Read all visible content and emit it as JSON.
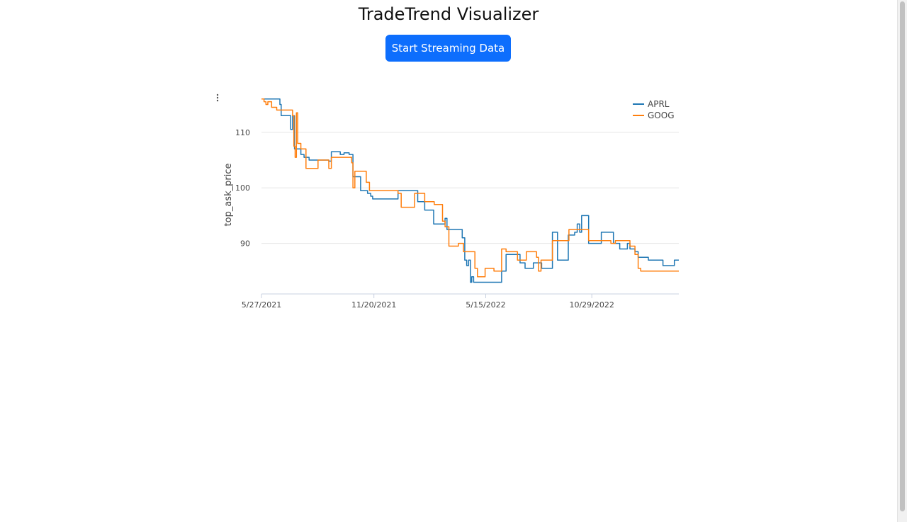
{
  "app": {
    "title": "TradeTrend Visualizer",
    "stream_button_label": "Start Streaming Data",
    "menu_icon": "vertical-dots-icon"
  },
  "colors": {
    "button": "#0d6efd",
    "aprl": "#1f77b4",
    "goog": "#ff7f0e",
    "grid": "#e5e5e5"
  },
  "chart_data": {
    "type": "line",
    "title": "",
    "xlabel": "",
    "ylabel": "top_ask_price",
    "x_tick_labels": [
      "5/27/2021",
      "11/20/2021",
      "5/15/2022",
      "10/29/2022"
    ],
    "y_tick_labels": [
      "110",
      "100",
      "90"
    ],
    "x_range": [
      "2021-05-27",
      "2023-03-15"
    ],
    "ylim": [
      80.9,
      116.6
    ],
    "grid": true,
    "legend_position": "top-right",
    "series": [
      {
        "name": "APRL",
        "color": "#1f77b4",
        "points": [
          [
            "2021-05-27",
            116.0
          ],
          [
            "2021-06-20",
            116.0
          ],
          [
            "2021-06-25",
            115.0
          ],
          [
            "2021-06-27",
            113.0
          ],
          [
            "2021-07-10",
            113.0
          ],
          [
            "2021-07-12",
            110.5
          ],
          [
            "2021-07-15",
            113.0
          ],
          [
            "2021-07-18",
            107.0
          ],
          [
            "2021-07-22",
            107.0
          ],
          [
            "2021-07-28",
            106.0
          ],
          [
            "2021-08-02",
            105.5
          ],
          [
            "2021-08-10",
            105.0
          ],
          [
            "2021-09-05",
            105.0
          ],
          [
            "2021-09-10",
            104.8
          ],
          [
            "2021-09-14",
            106.5
          ],
          [
            "2021-09-22",
            106.5
          ],
          [
            "2021-09-28",
            106.0
          ],
          [
            "2021-10-04",
            106.3
          ],
          [
            "2021-10-12",
            106.0
          ],
          [
            "2021-10-18",
            102.0
          ],
          [
            "2021-10-25",
            102.0
          ],
          [
            "2021-10-30",
            99.5
          ],
          [
            "2021-11-10",
            99.0
          ],
          [
            "2021-11-15",
            98.5
          ],
          [
            "2021-11-18",
            98.0
          ],
          [
            "2021-12-25",
            98.0
          ],
          [
            "2021-12-28",
            99.5
          ],
          [
            "2022-01-10",
            99.5
          ],
          [
            "2022-01-25",
            99.5
          ],
          [
            "2022-01-28",
            97.5
          ],
          [
            "2022-02-05",
            97.5
          ],
          [
            "2022-02-08",
            96.0
          ],
          [
            "2022-02-18",
            96.0
          ],
          [
            "2022-02-22",
            93.5
          ],
          [
            "2022-03-10",
            93.5
          ],
          [
            "2022-03-12",
            94.5
          ],
          [
            "2022-03-15",
            92.5
          ],
          [
            "2022-04-05",
            92.5
          ],
          [
            "2022-04-08",
            91.0
          ],
          [
            "2022-04-12",
            87.0
          ],
          [
            "2022-04-15",
            86.0
          ],
          [
            "2022-04-18",
            87.0
          ],
          [
            "2022-04-21",
            83.0
          ],
          [
            "2022-04-23",
            84.0
          ],
          [
            "2022-04-26",
            83.0
          ],
          [
            "2022-05-20",
            83.0
          ],
          [
            "2022-05-25",
            83.0
          ],
          [
            "2022-06-05",
            83.0
          ],
          [
            "2022-06-09",
            85.0
          ],
          [
            "2022-06-16",
            88.0
          ],
          [
            "2022-07-03",
            88.0
          ],
          [
            "2022-07-08",
            86.5
          ],
          [
            "2022-07-13",
            86.5
          ],
          [
            "2022-07-16",
            85.5
          ],
          [
            "2022-07-26",
            85.5
          ],
          [
            "2022-07-29",
            86.5
          ],
          [
            "2022-08-06",
            86.5
          ],
          [
            "2022-08-11",
            85.5
          ],
          [
            "2022-08-25",
            85.5
          ],
          [
            "2022-08-28",
            92.0
          ],
          [
            "2022-09-03",
            92.0
          ],
          [
            "2022-09-05",
            87.0
          ],
          [
            "2022-09-20",
            87.0
          ],
          [
            "2022-09-22",
            91.5
          ],
          [
            "2022-10-02",
            92.0
          ],
          [
            "2022-10-06",
            93.5
          ],
          [
            "2022-10-10",
            92.0
          ],
          [
            "2022-10-13",
            95.0
          ],
          [
            "2022-10-20",
            95.0
          ],
          [
            "2022-10-24",
            90.0
          ],
          [
            "2022-11-10",
            90.0
          ],
          [
            "2022-11-13",
            92.0
          ],
          [
            "2022-11-30",
            92.0
          ],
          [
            "2022-12-02",
            90.0
          ],
          [
            "2022-12-08",
            90.0
          ],
          [
            "2022-12-12",
            89.0
          ],
          [
            "2022-12-20",
            89.0
          ],
          [
            "2022-12-24",
            90.0
          ],
          [
            "2022-12-28",
            89.0
          ],
          [
            "2023-01-05",
            88.5
          ],
          [
            "2023-01-10",
            87.5
          ],
          [
            "2023-01-20",
            87.5
          ],
          [
            "2023-01-26",
            87.0
          ],
          [
            "2023-02-15",
            87.0
          ],
          [
            "2023-02-18",
            86.0
          ],
          [
            "2023-03-05",
            86.0
          ],
          [
            "2023-03-08",
            87.0
          ],
          [
            "2023-03-15",
            87.0
          ]
        ]
      },
      {
        "name": "GOOG",
        "color": "#ff7f0e",
        "points": [
          [
            "2021-05-27",
            116.0
          ],
          [
            "2021-05-31",
            115.5
          ],
          [
            "2021-06-03",
            115.0
          ],
          [
            "2021-06-06",
            115.5
          ],
          [
            "2021-06-12",
            114.5
          ],
          [
            "2021-06-20",
            114.0
          ],
          [
            "2021-07-12",
            114.0
          ],
          [
            "2021-07-15",
            113.0
          ],
          [
            "2021-07-17",
            107.5
          ],
          [
            "2021-07-19",
            105.5
          ],
          [
            "2021-07-21",
            113.5
          ],
          [
            "2021-07-23",
            108.0
          ],
          [
            "2021-07-28",
            107.0
          ],
          [
            "2021-08-05",
            103.5
          ],
          [
            "2021-08-20",
            103.5
          ],
          [
            "2021-08-24",
            105.0
          ],
          [
            "2021-09-05",
            105.0
          ],
          [
            "2021-09-10",
            103.5
          ],
          [
            "2021-09-14",
            105.5
          ],
          [
            "2021-10-12",
            105.5
          ],
          [
            "2021-10-16",
            104.5
          ],
          [
            "2021-10-18",
            100.0
          ],
          [
            "2021-10-21",
            103.0
          ],
          [
            "2021-11-05",
            103.0
          ],
          [
            "2021-11-08",
            101.0
          ],
          [
            "2021-11-13",
            99.5
          ],
          [
            "2021-12-25",
            99.5
          ],
          [
            "2021-12-28",
            99.0
          ],
          [
            "2022-01-02",
            96.5
          ],
          [
            "2022-01-20",
            96.5
          ],
          [
            "2022-01-23",
            99.0
          ],
          [
            "2022-02-05",
            99.0
          ],
          [
            "2022-02-08",
            97.5
          ],
          [
            "2022-02-20",
            97.5
          ],
          [
            "2022-02-23",
            97.0
          ],
          [
            "2022-03-05",
            97.0
          ],
          [
            "2022-03-08",
            94.0
          ],
          [
            "2022-03-12",
            93.0
          ],
          [
            "2022-03-18",
            89.5
          ],
          [
            "2022-03-30",
            89.5
          ],
          [
            "2022-04-02",
            90.0
          ],
          [
            "2022-04-10",
            88.5
          ],
          [
            "2022-04-25",
            88.5
          ],
          [
            "2022-04-28",
            85.5
          ],
          [
            "2022-05-02",
            84.0
          ],
          [
            "2022-05-10",
            84.0
          ],
          [
            "2022-05-14",
            85.5
          ],
          [
            "2022-05-25",
            85.5
          ],
          [
            "2022-05-28",
            85.0
          ],
          [
            "2022-06-05",
            85.0
          ],
          [
            "2022-06-09",
            89.0
          ],
          [
            "2022-06-16",
            88.5
          ],
          [
            "2022-07-01",
            88.5
          ],
          [
            "2022-07-04",
            87.0
          ],
          [
            "2022-07-14",
            87.0
          ],
          [
            "2022-07-18",
            88.5
          ],
          [
            "2022-07-30",
            88.5
          ],
          [
            "2022-08-03",
            87.5
          ],
          [
            "2022-08-06",
            85.0
          ],
          [
            "2022-08-10",
            87.0
          ],
          [
            "2022-08-25",
            87.0
          ],
          [
            "2022-08-28",
            90.5
          ],
          [
            "2022-09-20",
            90.5
          ],
          [
            "2022-09-23",
            92.5
          ],
          [
            "2022-10-20",
            92.5
          ],
          [
            "2022-10-24",
            90.5
          ],
          [
            "2022-11-25",
            90.5
          ],
          [
            "2022-11-28",
            90.0
          ],
          [
            "2022-12-05",
            90.5
          ],
          [
            "2022-12-25",
            90.5
          ],
          [
            "2022-12-28",
            89.5
          ],
          [
            "2023-01-05",
            88.0
          ],
          [
            "2023-01-10",
            85.5
          ],
          [
            "2023-01-14",
            85.0
          ],
          [
            "2023-02-15",
            85.0
          ],
          [
            "2023-03-15",
            85.0
          ]
        ]
      }
    ]
  }
}
